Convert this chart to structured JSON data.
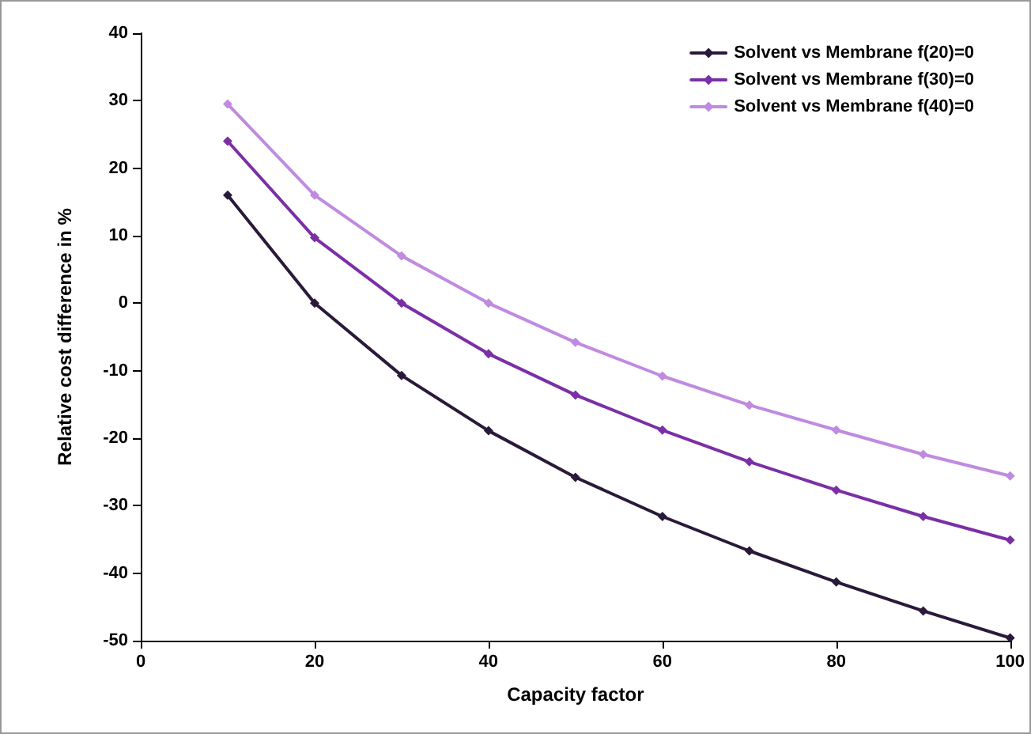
{
  "chart_data": {
    "type": "line",
    "xlabel": "Capacity factor",
    "ylabel": "Relative cost difference in %",
    "x": [
      10,
      20,
      30,
      40,
      50,
      60,
      70,
      80,
      90,
      100
    ],
    "series": [
      {
        "name": "Solvent vs Membrane f(20)=0",
        "color": "#2a1a3a",
        "values": [
          16,
          0,
          -10.7,
          -18.9,
          -25.8,
          -31.6,
          -36.7,
          -41.3,
          -45.6,
          -49.6
        ]
      },
      {
        "name": "Solvent vs Membrane f(30)=0",
        "color": "#7b2fa6",
        "values": [
          24,
          9.7,
          0,
          -7.5,
          -13.6,
          -18.8,
          -23.5,
          -27.7,
          -31.6,
          -35.1
        ]
      },
      {
        "name": "Solvent vs Membrane f(40)=0",
        "color": "#c08ae0",
        "values": [
          29.5,
          16,
          7,
          0,
          -5.8,
          -10.8,
          -15.1,
          -18.8,
          -22.4,
          -25.6
        ]
      }
    ],
    "xlim": [
      0,
      100
    ],
    "xticks": [
      0,
      20,
      40,
      60,
      80,
      100
    ],
    "ylim": [
      -50,
      40
    ],
    "yticks": [
      -50,
      -40,
      -30,
      -20,
      -10,
      0,
      10,
      20,
      30,
      40
    ],
    "grid": false,
    "legend": "top right",
    "marker": "diamond",
    "line_style": "solid"
  }
}
